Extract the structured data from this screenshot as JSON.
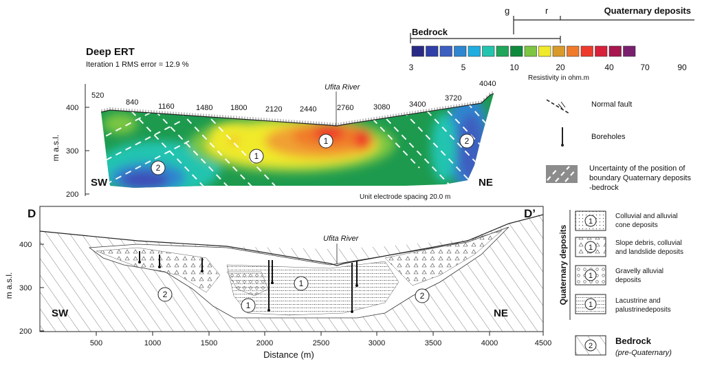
{
  "ert": {
    "title": "Deep ERT",
    "subtitle": "Iteration 1 RMS error = 12.9 %",
    "y_axis_label": "m a.s.l.",
    "y_ticks": [
      "400",
      "300",
      "200"
    ],
    "electrode_labels": [
      "520",
      "840",
      "1160",
      "1480",
      "1800",
      "2120",
      "2440",
      "2760",
      "3080",
      "3400",
      "3720",
      "4040"
    ],
    "river_label": "Ufita River",
    "left_label": "SW",
    "right_label": "NE",
    "spacing_note": "Unit electrode spacing 20.0 m",
    "unit_markers": [
      "1",
      "1",
      "2",
      "2"
    ]
  },
  "scale": {
    "bedrock_label": "Bedrock",
    "quaternary_label": "Quaternary deposits",
    "g_label": "g",
    "r_label": "r",
    "caption": "Resistivity in ohm.m",
    "tick_labels": [
      "3",
      "5",
      "10",
      "20",
      "40",
      "70",
      "90"
    ],
    "colors": [
      "#2a2a86",
      "#2f3fa8",
      "#3c5fc0",
      "#2d86cf",
      "#20aee0",
      "#22c4b0",
      "#1fa65a",
      "#0e8a3c",
      "#7cc642",
      "#f0ea2a",
      "#d99a2a",
      "#f07a2a",
      "#ee3a2a",
      "#d8203a",
      "#a81650",
      "#7a1f6e"
    ]
  },
  "ert_legend": {
    "fault_label": "Normal fault",
    "borehole_label": "Boreholes",
    "uncertainty_label_lines": [
      "Uncertainty of the position of",
      "boundary Quaternary deposits",
      "-bedrock"
    ]
  },
  "section": {
    "left_letter": "D",
    "right_letter": "D’",
    "y_axis_label": "m a.s.l.",
    "y_ticks": [
      "400",
      "300",
      "200"
    ],
    "x_ticks": [
      "500",
      "1000",
      "1500",
      "2000",
      "2500",
      "3000",
      "3500",
      "4000",
      "4500"
    ],
    "x_axis_label": "Distance (m)",
    "river_label": "Ufita River",
    "left_label": "SW",
    "right_label": "NE",
    "unit_markers": [
      "1",
      "1",
      "2",
      "2"
    ]
  },
  "geo_legend": {
    "group_title": "Quaternary deposits",
    "items": [
      {
        "num": "1",
        "lines": [
          "Colluvial and alluvial",
          "cone deposits"
        ]
      },
      {
        "num": "1",
        "lines": [
          "Slope debris, colluvial",
          "and landslide deposits"
        ]
      },
      {
        "num": "1",
        "lines": [
          "Gravelly alluvial",
          "deposits"
        ]
      },
      {
        "num": "1",
        "lines": [
          "Lacustrine and",
          "palustrinedeposits"
        ]
      }
    ],
    "bedrock_num": "2",
    "bedrock_title": "Bedrock",
    "bedrock_subtitle": "(pre-Quaternary)"
  }
}
